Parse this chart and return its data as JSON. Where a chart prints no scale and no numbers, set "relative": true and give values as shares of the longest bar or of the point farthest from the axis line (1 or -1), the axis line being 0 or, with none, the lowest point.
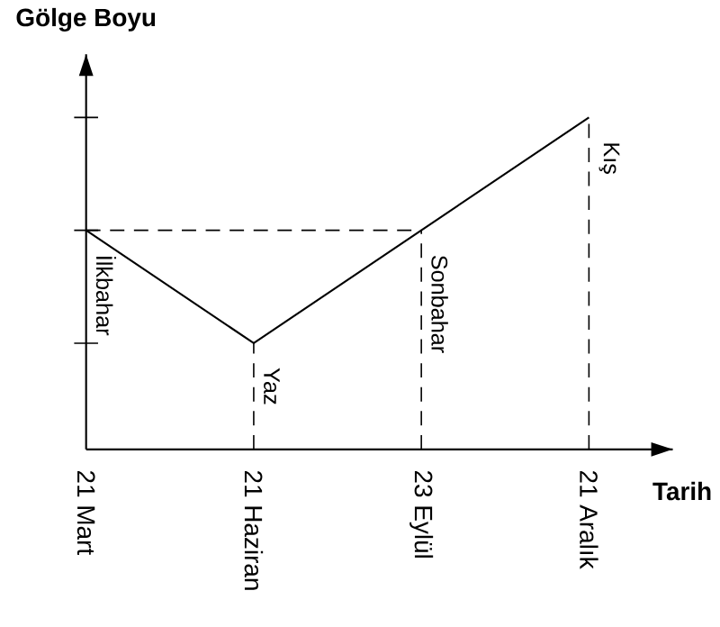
{
  "chart_data": {
    "type": "line",
    "relative": true,
    "xlabel": "Tarih",
    "ylabel": "Gölge Boyu",
    "categories": [
      "21 Mart",
      "21 Haziran",
      "23 Eylül",
      "21 Aralık"
    ],
    "values": [
      0.66,
      0.32,
      0.66,
      1
    ],
    "color": "#000000",
    "marker": "none",
    "line_style": "solid",
    "annotations": [
      "İlkbahar",
      "Yaz",
      "Sonbahar",
      "Kış"
    ],
    "ref_lines": [
      {
        "axis": "y",
        "value": 0.66,
        "line_style": "dashed"
      }
    ]
  }
}
